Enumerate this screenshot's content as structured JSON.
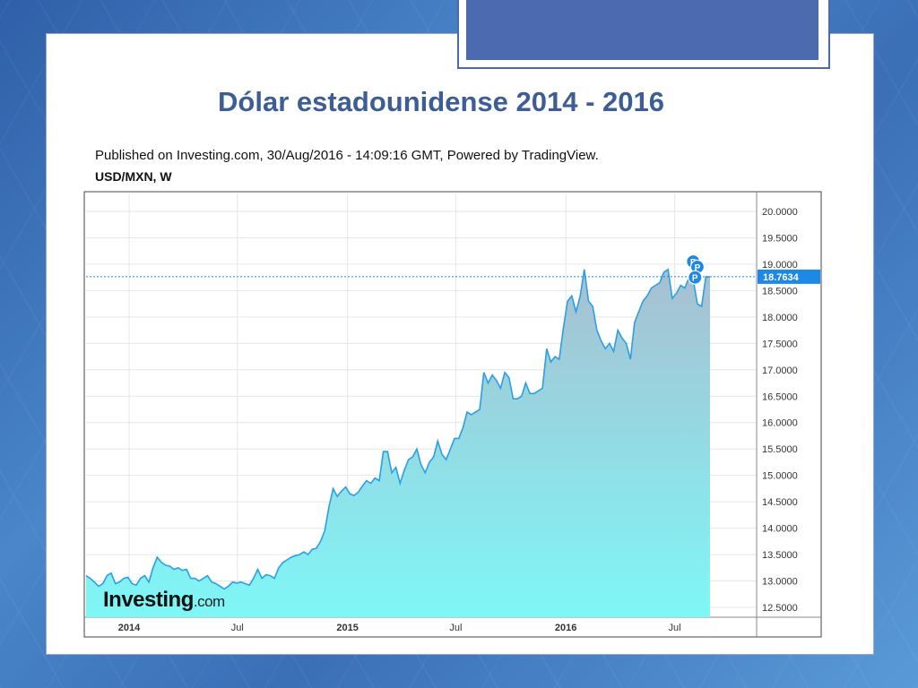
{
  "slide": {
    "title": "Dólar estadounidense 2014 - 2016"
  },
  "chart_header": {
    "published": "Published on Investing.com, 30/Aug/2016 - 14:09:16 GMT, Powered by TradingView.",
    "symbol": "USD/MXN, W"
  },
  "branding": {
    "logo_main": "Investing",
    "logo_suffix": ".com"
  },
  "colors": {
    "line": "#2b9fe6",
    "area_top": "#a8bfd0",
    "area_bottom": "#7ef7f7",
    "price_tag": "#1e88e5",
    "title": "#3c5e95"
  },
  "chart_data": {
    "type": "area",
    "title": "",
    "xlabel": "",
    "ylabel": "",
    "ylim": [
      12.5,
      20.0
    ],
    "xlim": [
      "2013-10-21",
      "2016-11-15"
    ],
    "x_ticks": [
      {
        "label": "2014",
        "date": "2014-01-01",
        "bold": true
      },
      {
        "label": "Jul",
        "date": "2014-07-01",
        "bold": false
      },
      {
        "label": "2015",
        "date": "2015-01-01",
        "bold": true
      },
      {
        "label": "Jul",
        "date": "2015-07-01",
        "bold": false
      },
      {
        "label": "2016",
        "date": "2016-01-01",
        "bold": true
      },
      {
        "label": "Jul",
        "date": "2016-07-01",
        "bold": false
      }
    ],
    "y_ticks": [
      "12.5000",
      "13.0000",
      "13.5000",
      "14.0000",
      "14.5000",
      "15.0000",
      "15.5000",
      "16.0000",
      "16.5000",
      "17.0000",
      "17.5000",
      "18.0000",
      "18.5000",
      "19.0000",
      "19.5000",
      "20.0000"
    ],
    "last_price": 18.7634,
    "last_price_label": "18.7634",
    "markers": [
      {
        "label": "P",
        "date": "2016-08-01",
        "value": 19.05
      },
      {
        "label": "P",
        "date": "2016-08-08",
        "value": 18.95
      },
      {
        "label": "P",
        "date": "2016-08-04",
        "value": 18.75
      }
    ],
    "grid": true,
    "series": [
      {
        "points": [
          [
            "2013-10-21",
            13.1
          ],
          [
            "2013-10-28",
            13.05
          ],
          [
            "2013-11-04",
            12.98
          ],
          [
            "2013-11-11",
            12.9
          ],
          [
            "2013-11-18",
            12.95
          ],
          [
            "2013-11-25",
            13.1
          ],
          [
            "2013-12-02",
            13.15
          ],
          [
            "2013-12-09",
            12.95
          ],
          [
            "2013-12-16",
            12.98
          ],
          [
            "2013-12-23",
            13.05
          ],
          [
            "2013-12-30",
            13.07
          ],
          [
            "2014-01-06",
            12.95
          ],
          [
            "2014-01-13",
            12.92
          ],
          [
            "2014-01-20",
            13.05
          ],
          [
            "2014-01-27",
            13.1
          ],
          [
            "2014-02-03",
            12.98
          ],
          [
            "2014-02-10",
            13.25
          ],
          [
            "2014-02-17",
            13.45
          ],
          [
            "2014-02-24",
            13.35
          ],
          [
            "2014-03-03",
            13.3
          ],
          [
            "2014-03-10",
            13.28
          ],
          [
            "2014-03-17",
            13.22
          ],
          [
            "2014-03-24",
            13.25
          ],
          [
            "2014-03-31",
            13.2
          ],
          [
            "2014-04-07",
            13.22
          ],
          [
            "2014-04-14",
            13.05
          ],
          [
            "2014-04-21",
            13.05
          ],
          [
            "2014-04-28",
            13.0
          ],
          [
            "2014-05-05",
            13.05
          ],
          [
            "2014-05-12",
            13.1
          ],
          [
            "2014-05-19",
            12.98
          ],
          [
            "2014-05-26",
            12.95
          ],
          [
            "2014-06-02",
            12.9
          ],
          [
            "2014-06-09",
            12.85
          ],
          [
            "2014-06-16",
            12.9
          ],
          [
            "2014-06-23",
            12.98
          ],
          [
            "2014-06-30",
            12.96
          ],
          [
            "2014-07-07",
            12.98
          ],
          [
            "2014-07-14",
            12.95
          ],
          [
            "2014-07-21",
            12.92
          ],
          [
            "2014-07-28",
            13.05
          ],
          [
            "2014-08-04",
            13.22
          ],
          [
            "2014-08-11",
            13.05
          ],
          [
            "2014-08-18",
            13.12
          ],
          [
            "2014-08-25",
            13.1
          ],
          [
            "2014-09-01",
            13.05
          ],
          [
            "2014-09-08",
            13.25
          ],
          [
            "2014-09-15",
            13.35
          ],
          [
            "2014-09-22",
            13.4
          ],
          [
            "2014-09-29",
            13.45
          ],
          [
            "2014-10-06",
            13.48
          ],
          [
            "2014-10-13",
            13.5
          ],
          [
            "2014-10-20",
            13.55
          ],
          [
            "2014-10-27",
            13.5
          ],
          [
            "2014-11-03",
            13.6
          ],
          [
            "2014-11-10",
            13.62
          ],
          [
            "2014-11-17",
            13.75
          ],
          [
            "2014-11-24",
            13.95
          ],
          [
            "2014-12-01",
            14.4
          ],
          [
            "2014-12-08",
            14.75
          ],
          [
            "2014-12-15",
            14.6
          ],
          [
            "2014-12-22",
            14.7
          ],
          [
            "2014-12-29",
            14.78
          ],
          [
            "2015-01-05",
            14.65
          ],
          [
            "2015-01-12",
            14.62
          ],
          [
            "2015-01-19",
            14.68
          ],
          [
            "2015-01-26",
            14.8
          ],
          [
            "2015-02-02",
            14.9
          ],
          [
            "2015-02-09",
            14.85
          ],
          [
            "2015-02-16",
            14.95
          ],
          [
            "2015-02-23",
            14.9
          ],
          [
            "2015-03-02",
            15.45
          ],
          [
            "2015-03-09",
            15.45
          ],
          [
            "2015-03-16",
            15.05
          ],
          [
            "2015-03-23",
            15.15
          ],
          [
            "2015-03-30",
            14.85
          ],
          [
            "2015-04-06",
            15.1
          ],
          [
            "2015-04-13",
            15.3
          ],
          [
            "2015-04-20",
            15.35
          ],
          [
            "2015-04-27",
            15.5
          ],
          [
            "2015-05-04",
            15.2
          ],
          [
            "2015-05-11",
            15.05
          ],
          [
            "2015-05-18",
            15.25
          ],
          [
            "2015-05-25",
            15.35
          ],
          [
            "2015-06-01",
            15.65
          ],
          [
            "2015-06-08",
            15.4
          ],
          [
            "2015-06-15",
            15.3
          ],
          [
            "2015-06-22",
            15.5
          ],
          [
            "2015-06-29",
            15.7
          ],
          [
            "2015-07-06",
            15.7
          ],
          [
            "2015-07-13",
            15.9
          ],
          [
            "2015-07-20",
            16.2
          ],
          [
            "2015-07-27",
            16.15
          ],
          [
            "2015-08-03",
            16.2
          ],
          [
            "2015-08-10",
            16.25
          ],
          [
            "2015-08-17",
            16.95
          ],
          [
            "2015-08-24",
            16.75
          ],
          [
            "2015-08-31",
            16.9
          ],
          [
            "2015-09-07",
            16.8
          ],
          [
            "2015-09-14",
            16.65
          ],
          [
            "2015-09-21",
            16.95
          ],
          [
            "2015-09-28",
            16.85
          ],
          [
            "2015-10-05",
            16.45
          ],
          [
            "2015-10-12",
            16.45
          ],
          [
            "2015-10-19",
            16.5
          ],
          [
            "2015-10-26",
            16.75
          ],
          [
            "2015-11-02",
            16.55
          ],
          [
            "2015-11-09",
            16.55
          ],
          [
            "2015-11-16",
            16.6
          ],
          [
            "2015-11-23",
            16.65
          ],
          [
            "2015-11-30",
            17.4
          ],
          [
            "2015-12-07",
            17.15
          ],
          [
            "2015-12-14",
            17.25
          ],
          [
            "2015-12-21",
            17.2
          ],
          [
            "2015-12-28",
            17.8
          ],
          [
            "2016-01-04",
            18.3
          ],
          [
            "2016-01-11",
            18.4
          ],
          [
            "2016-01-18",
            18.1
          ],
          [
            "2016-01-25",
            18.4
          ],
          [
            "2016-02-01",
            18.9
          ],
          [
            "2016-02-08",
            18.3
          ],
          [
            "2016-02-15",
            18.2
          ],
          [
            "2016-02-22",
            17.75
          ],
          [
            "2016-02-29",
            17.55
          ],
          [
            "2016-03-07",
            17.4
          ],
          [
            "2016-03-14",
            17.5
          ],
          [
            "2016-03-21",
            17.35
          ],
          [
            "2016-03-28",
            17.75
          ],
          [
            "2016-04-04",
            17.6
          ],
          [
            "2016-04-11",
            17.5
          ],
          [
            "2016-04-18",
            17.2
          ],
          [
            "2016-04-25",
            17.9
          ],
          [
            "2016-05-02",
            18.1
          ],
          [
            "2016-05-09",
            18.3
          ],
          [
            "2016-05-16",
            18.4
          ],
          [
            "2016-05-23",
            18.55
          ],
          [
            "2016-05-30",
            18.6
          ],
          [
            "2016-06-06",
            18.65
          ],
          [
            "2016-06-13",
            18.85
          ],
          [
            "2016-06-20",
            18.9
          ],
          [
            "2016-06-27",
            18.35
          ],
          [
            "2016-07-04",
            18.45
          ],
          [
            "2016-07-11",
            18.6
          ],
          [
            "2016-07-18",
            18.55
          ],
          [
            "2016-07-25",
            18.75
          ],
          [
            "2016-08-01",
            18.7
          ],
          [
            "2016-08-08",
            18.25
          ],
          [
            "2016-08-15",
            18.2
          ],
          [
            "2016-08-22",
            18.76
          ],
          [
            "2016-08-29",
            18.76
          ]
        ]
      }
    ]
  }
}
